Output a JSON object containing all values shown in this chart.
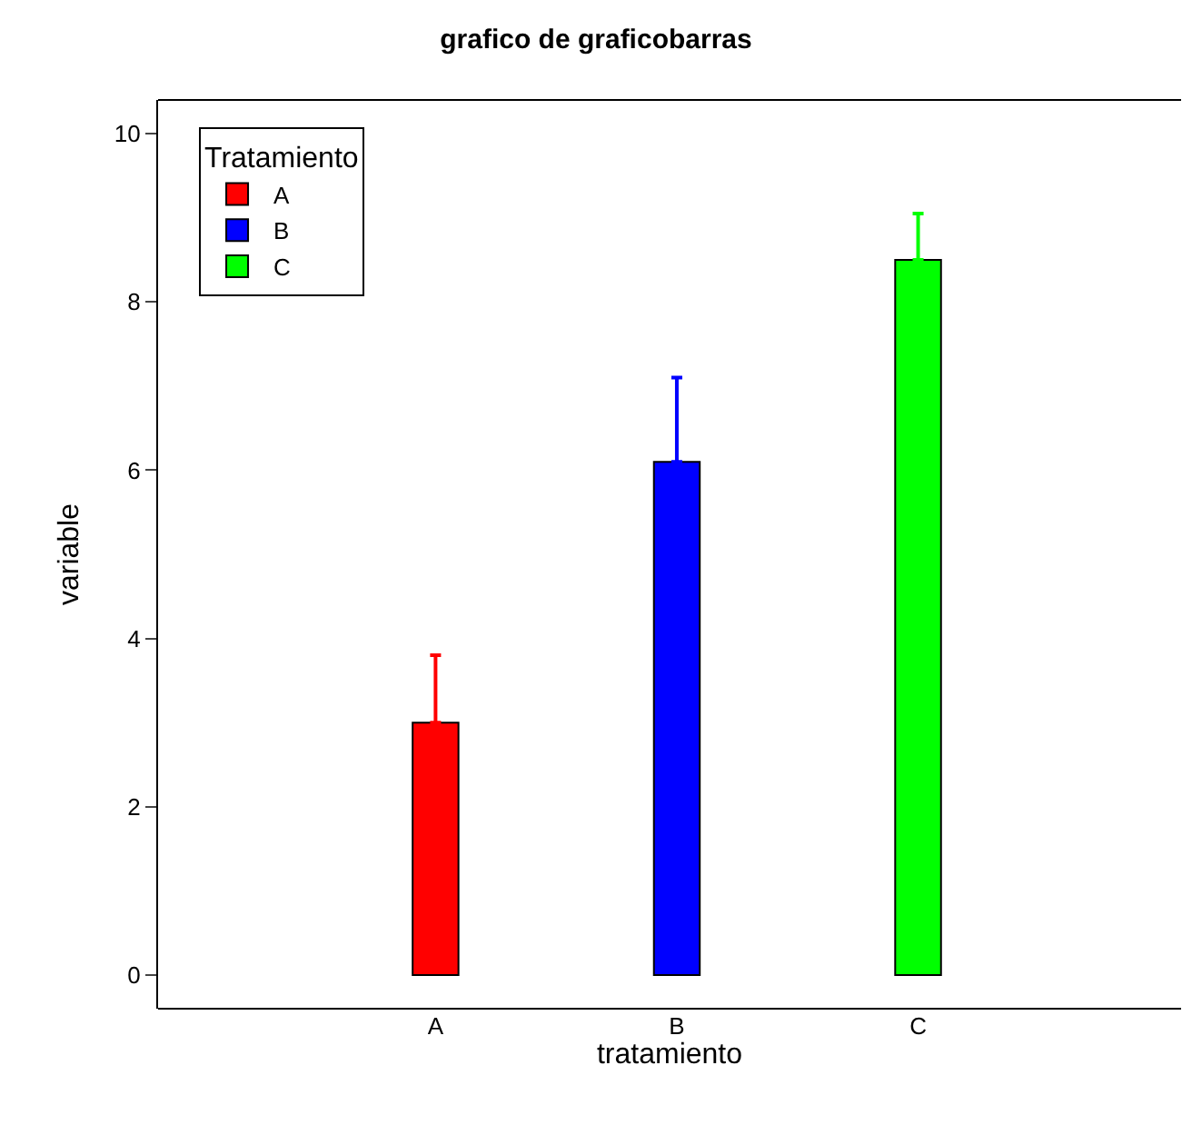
{
  "chart_data": {
    "type": "bar",
    "title": "grafico de graficobarras",
    "xlabel": "tratamiento",
    "ylabel": "variable",
    "legend_title": "Tratamiento",
    "categories": [
      "A",
      "B",
      "C"
    ],
    "series": [
      {
        "name": "A",
        "color": "#ff0000",
        "values": [
          3,
          null,
          null
        ],
        "errors": [
          [
            3,
            3.8
          ],
          null,
          null
        ]
      },
      {
        "name": "B",
        "color": "#0000ff",
        "values": [
          null,
          6.1,
          null
        ],
        "errors": [
          null,
          [
            6.1,
            7.1
          ],
          null
        ]
      },
      {
        "name": "C",
        "color": "#00ff00",
        "values": [
          null,
          null,
          8.5
        ],
        "errors": [
          null,
          null,
          [
            8.5,
            9.05
          ]
        ]
      }
    ],
    "ylim": [
      -0.4,
      10.4
    ],
    "yticks": [
      0,
      2,
      4,
      6,
      8,
      10
    ],
    "legend": "top left"
  }
}
